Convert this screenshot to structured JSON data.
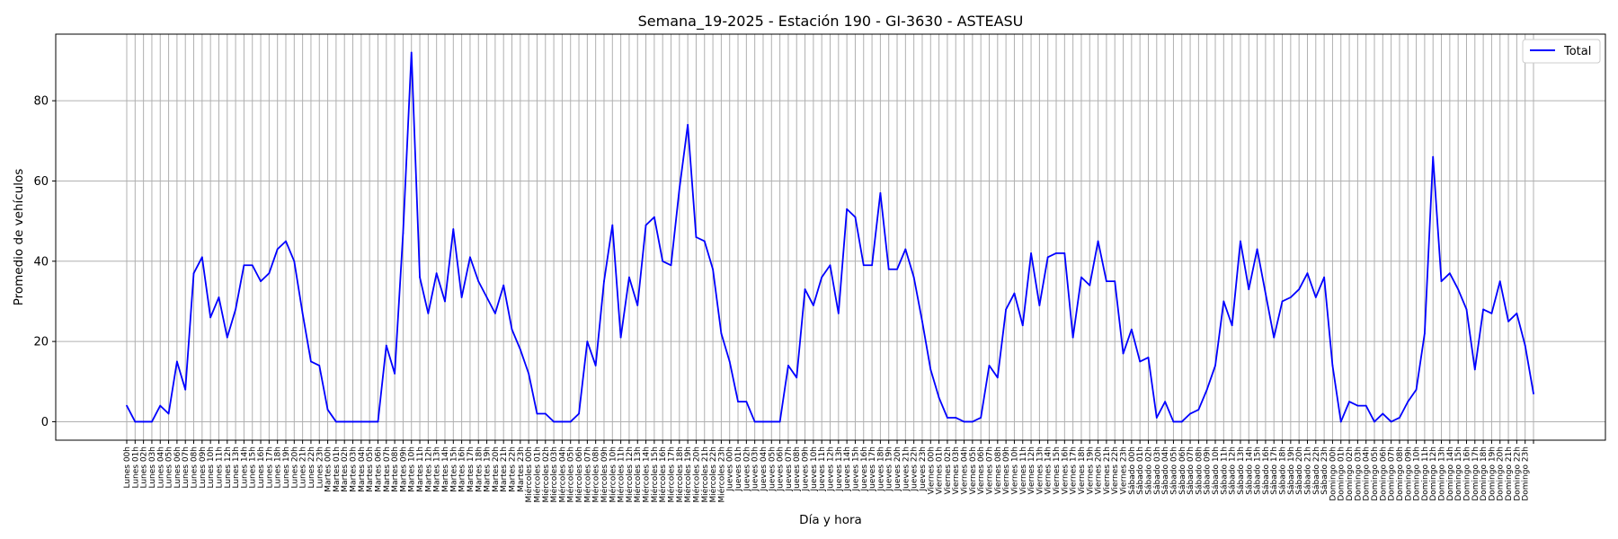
{
  "chart_data": {
    "type": "line",
    "title": "Semana_19-2025 - Estación 190 - GI-3630  - ASTEASU",
    "xlabel": "Día y hora",
    "ylabel": "Promedio de vehículos",
    "ylim": [
      -4.6,
      96.6
    ],
    "yticks": [
      0,
      20,
      40,
      60,
      80
    ],
    "grid": true,
    "legend_position": "top-right",
    "days": [
      "Lunes",
      "Martes",
      "Miércoles",
      "Jueves",
      "Viernes",
      "Sábado",
      "Domingo"
    ],
    "hours": [
      "00h",
      "01h",
      "02h",
      "03h",
      "04h",
      "05h",
      "06h",
      "07h",
      "08h",
      "09h",
      "10h",
      "11h",
      "12h",
      "13h",
      "14h",
      "15h",
      "16h",
      "17h",
      "18h",
      "19h",
      "20h",
      "21h",
      "22h",
      "23h"
    ],
    "series": [
      {
        "name": "Total",
        "color": "#0000ff",
        "values": [
          4,
          0,
          0,
          0,
          4,
          2,
          15,
          8,
          37,
          41,
          26,
          31,
          21,
          28,
          39,
          39,
          35,
          37,
          43,
          45,
          40,
          27,
          15,
          14,
          3,
          0,
          0,
          0,
          0,
          0,
          0,
          19,
          12,
          47,
          92,
          36,
          27,
          37,
          30,
          48,
          31,
          41,
          35,
          31,
          27,
          34,
          23,
          18,
          12,
          2,
          2,
          0,
          0,
          0,
          2,
          20,
          14,
          35,
          49,
          21,
          36,
          29,
          49,
          51,
          40,
          39,
          58,
          74,
          46,
          45,
          38,
          22,
          15,
          5,
          5,
          0,
          0,
          0,
          0,
          14,
          11,
          33,
          29,
          36,
          39,
          27,
          53,
          51,
          39,
          39,
          57,
          38,
          38,
          43,
          36,
          25,
          13,
          6,
          1,
          1,
          0,
          0,
          1,
          14,
          11,
          28,
          32,
          24,
          42,
          29,
          41,
          42,
          42,
          21,
          36,
          34,
          45,
          35,
          35,
          17,
          23,
          15,
          16,
          1,
          5,
          0,
          0,
          2,
          3,
          8,
          14,
          30,
          24,
          45,
          33,
          43,
          32,
          21,
          30,
          31,
          33,
          37,
          31,
          36,
          14,
          0,
          5,
          4,
          4,
          0,
          2,
          0,
          1,
          5,
          8,
          22,
          66,
          35,
          37,
          33,
          28,
          13,
          28,
          27,
          35,
          25,
          27,
          19,
          7
        ]
      }
    ]
  }
}
